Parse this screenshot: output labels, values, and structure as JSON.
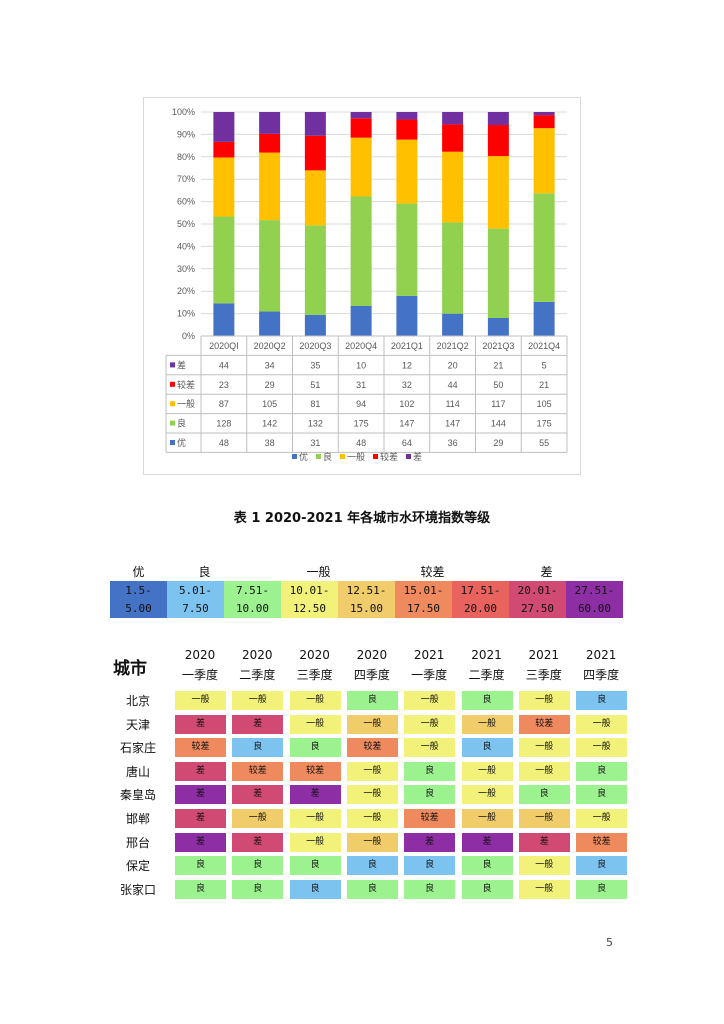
{
  "chart_data": {
    "type": "bar",
    "stacked": "percent",
    "categories": [
      "2020QI",
      "2020Q2",
      "2020Q3",
      "2020Q4",
      "2021Q1",
      "2021Q2",
      "2021Q3",
      "2021Q4"
    ],
    "y_ticks": [
      "0%",
      "10%",
      "20%",
      "30%",
      "40%",
      "50%",
      "60%",
      "70%",
      "80%",
      "90%",
      "100%"
    ],
    "ylim": [
      0,
      100
    ],
    "grid": true,
    "legend": "bottom",
    "series": [
      {
        "name": "优",
        "color": "#4472C4",
        "values": [
          48,
          38,
          31,
          48,
          64,
          36,
          29,
          55
        ]
      },
      {
        "name": "良",
        "color": "#92D050",
        "values": [
          128,
          142,
          132,
          175,
          147,
          147,
          144,
          175
        ]
      },
      {
        "name": "一般",
        "color": "#FFC000",
        "values": [
          87,
          105,
          81,
          94,
          102,
          114,
          117,
          105
        ]
      },
      {
        "name": "较差",
        "color": "#FF0000",
        "values": [
          23,
          29,
          51,
          31,
          32,
          44,
          50,
          21
        ]
      },
      {
        "name": "差",
        "color": "#7030A0",
        "values": [
          44,
          34,
          35,
          10,
          12,
          20,
          21,
          5
        ]
      }
    ],
    "table_order": [
      4,
      3,
      2,
      1,
      0
    ]
  },
  "caption": "表 1 2020-2021 年各城市水环境指数等级",
  "scale": {
    "levels": [
      {
        "name": "优",
        "ranges": [
          {
            "text": "1.5-\n5.00",
            "color": "#4472C4"
          }
        ]
      },
      {
        "name": "良",
        "ranges": [
          {
            "text": "5.01-\n7.50",
            "color": "#7DC3F0"
          },
          {
            "text": "7.51-\n10.00",
            "color": "#9CF28F"
          }
        ]
      },
      {
        "name": "一般",
        "ranges": [
          {
            "text": "10.01-\n12.50",
            "color": "#F2F27A"
          },
          {
            "text": "12.51-\n15.00",
            "color": "#F0CC6A"
          }
        ]
      },
      {
        "name": "较差",
        "ranges": [
          {
            "text": "15.01-\n17.50",
            "color": "#EE8A5E"
          },
          {
            "text": "17.51-\n20.00",
            "color": "#E8625E"
          }
        ]
      },
      {
        "name": "差",
        "ranges": [
          {
            "text": "20.01-\n27.50",
            "color": "#D04A74"
          },
          {
            "text": "27.51-\n60.00",
            "color": "#8E2EA4"
          }
        ]
      }
    ]
  },
  "table": {
    "city_header": "城市",
    "columns": [
      {
        "year": "2020",
        "quarter": "一季度"
      },
      {
        "year": "2020",
        "quarter": "二季度"
      },
      {
        "year": "2020",
        "quarter": "三季度"
      },
      {
        "year": "2020",
        "quarter": "四季度"
      },
      {
        "year": "2021",
        "quarter": "一季度"
      },
      {
        "year": "2021",
        "quarter": "二季度"
      },
      {
        "year": "2021",
        "quarter": "三季度"
      },
      {
        "year": "2021",
        "quarter": "四季度"
      }
    ],
    "cell_colors": {
      "good_a": "#9CF28F",
      "good_b": "#7DC3F0",
      "fair_a": "#F2F27A",
      "fair_b": "#F0CC6A",
      "poor_a": "#EE8A5E",
      "bad_a": "#D04A74",
      "bad_b": "#8E2EA4"
    },
    "rows": [
      {
        "city": "北京",
        "cells": [
          [
            "一般",
            "fair_a"
          ],
          [
            "一般",
            "fair_a"
          ],
          [
            "一般",
            "fair_a"
          ],
          [
            "良",
            "good_a"
          ],
          [
            "一般",
            "fair_a"
          ],
          [
            "良",
            "good_a"
          ],
          [
            "一般",
            "fair_a"
          ],
          [
            "良",
            "good_b"
          ]
        ]
      },
      {
        "city": "天津",
        "cells": [
          [
            "差",
            "bad_a"
          ],
          [
            "差",
            "bad_a"
          ],
          [
            "一般",
            "fair_a"
          ],
          [
            "一般",
            "fair_b"
          ],
          [
            "一般",
            "fair_a"
          ],
          [
            "一般",
            "fair_b"
          ],
          [
            "较差",
            "poor_a"
          ],
          [
            "一般",
            "fair_a"
          ]
        ]
      },
      {
        "city": "石家庄",
        "cells": [
          [
            "较差",
            "poor_a"
          ],
          [
            "良",
            "good_b"
          ],
          [
            "良",
            "good_a"
          ],
          [
            "较差",
            "poor_a"
          ],
          [
            "一般",
            "fair_a"
          ],
          [
            "良",
            "good_b"
          ],
          [
            "一般",
            "fair_a"
          ],
          [
            "一般",
            "fair_a"
          ]
        ]
      },
      {
        "city": "唐山",
        "cells": [
          [
            "差",
            "bad_a"
          ],
          [
            "较差",
            "poor_a"
          ],
          [
            "较差",
            "poor_a"
          ],
          [
            "一般",
            "fair_a"
          ],
          [
            "良",
            "good_a"
          ],
          [
            "一般",
            "fair_a"
          ],
          [
            "一般",
            "fair_a"
          ],
          [
            "良",
            "good_a"
          ]
        ]
      },
      {
        "city": "秦皇岛",
        "cells": [
          [
            "差",
            "bad_b"
          ],
          [
            "差",
            "bad_a"
          ],
          [
            "差",
            "bad_b"
          ],
          [
            "一般",
            "fair_a"
          ],
          [
            "良",
            "good_a"
          ],
          [
            "一般",
            "fair_a"
          ],
          [
            "良",
            "good_a"
          ],
          [
            "良",
            "good_a"
          ]
        ]
      },
      {
        "city": "邯郸",
        "cells": [
          [
            "差",
            "bad_a"
          ],
          [
            "一般",
            "fair_b"
          ],
          [
            "一般",
            "fair_a"
          ],
          [
            "一般",
            "fair_a"
          ],
          [
            "较差",
            "poor_a"
          ],
          [
            "一般",
            "fair_b"
          ],
          [
            "一般",
            "fair_b"
          ],
          [
            "一般",
            "fair_a"
          ]
        ]
      },
      {
        "city": "邢台",
        "cells": [
          [
            "差",
            "bad_b"
          ],
          [
            "差",
            "bad_a"
          ],
          [
            "一般",
            "fair_a"
          ],
          [
            "一般",
            "fair_b"
          ],
          [
            "差",
            "bad_b"
          ],
          [
            "差",
            "bad_b"
          ],
          [
            "差",
            "bad_a"
          ],
          [
            "较差",
            "poor_a"
          ]
        ]
      },
      {
        "city": "保定",
        "cells": [
          [
            "良",
            "good_a"
          ],
          [
            "良",
            "good_a"
          ],
          [
            "良",
            "good_a"
          ],
          [
            "良",
            "good_b"
          ],
          [
            "良",
            "good_b"
          ],
          [
            "良",
            "good_a"
          ],
          [
            "一般",
            "fair_a"
          ],
          [
            "良",
            "good_b"
          ]
        ]
      },
      {
        "city": "张家口",
        "cells": [
          [
            "良",
            "good_a"
          ],
          [
            "良",
            "good_a"
          ],
          [
            "良",
            "good_b"
          ],
          [
            "良",
            "good_a"
          ],
          [
            "良",
            "good_a"
          ],
          [
            "良",
            "good_a"
          ],
          [
            "一般",
            "fair_a"
          ],
          [
            "良",
            "good_a"
          ]
        ]
      }
    ]
  },
  "page_number": "5"
}
